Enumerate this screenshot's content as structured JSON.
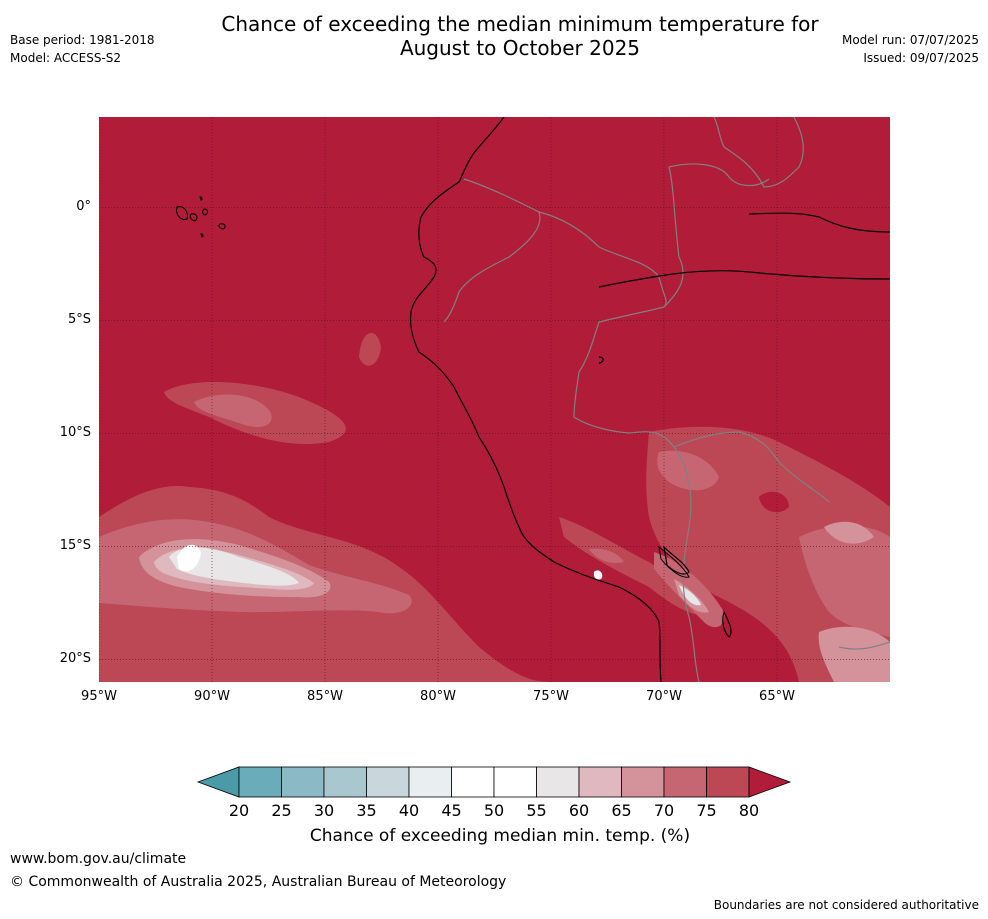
{
  "header": {
    "title_line1": "Chance of exceeding the median minimum temperature for",
    "title_line2": "August to October 2025",
    "base_period": "Base period: 1981-2018",
    "model": "Model: ACCESS-S2",
    "model_run": "Model run: 07/07/2025",
    "issued": "Issued: 09/07/2025"
  },
  "map": {
    "latitude_labels": [
      "0°",
      "5°S",
      "10°S",
      "15°S",
      "20°S"
    ],
    "longitude_labels": [
      "95°W",
      "90°W",
      "85°W",
      "80°W",
      "75°W",
      "70°W",
      "65°W"
    ],
    "lat_values": [
      0,
      -5,
      -10,
      -15,
      -20
    ],
    "lon_values": [
      -95,
      -90,
      -85,
      -80,
      -75,
      -70,
      -65
    ],
    "extent": {
      "lon_min": -95,
      "lon_max": -60,
      "lat_min": -21,
      "lat_max": 4
    },
    "background_class_color": "#b11c38",
    "coastline_color": "#000000",
    "border_color": "#808080"
  },
  "colorbar": {
    "title": "Chance of exceeding median min. temp. (%)",
    "tick_labels": [
      "20",
      "25",
      "30",
      "35",
      "40",
      "45",
      "50",
      "55",
      "60",
      "65",
      "70",
      "75",
      "80"
    ],
    "colors": [
      "#4a9aa7",
      "#6aacb9",
      "#8bbac6",
      "#a9c7ce",
      "#c9d7dc",
      "#e9eef0",
      "#ffffff",
      "#ffffff",
      "#e8e6e7",
      "#dfb9bf",
      "#d4939b",
      "#c76673",
      "#bc4856",
      "#b11c38"
    ]
  },
  "footer": {
    "url": "www.bom.gov.au/climate",
    "copyright": "© Commonwealth of Australia 2025, Australian Bureau of Meteorology",
    "note": "Boundaries are not considered authoritative"
  }
}
